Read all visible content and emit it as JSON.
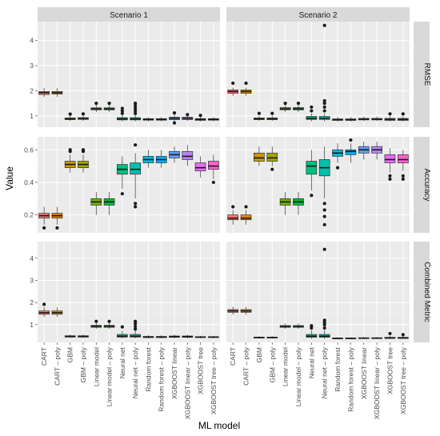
{
  "chart_data": {
    "type": "boxplot",
    "xlabel": "ML model",
    "ylabel": "Value",
    "columns": [
      "Scenario 1",
      "Scenario 2"
    ],
    "rows": [
      {
        "label": "RMSE",
        "ylim": [
          0.55,
          4.75
        ],
        "yticks": [
          1,
          2,
          3,
          4
        ]
      },
      {
        "label": "Accuracy",
        "ylim": [
          0.09,
          0.68
        ],
        "yticks": [
          0.2,
          0.4,
          0.6
        ]
      },
      {
        "label": "Combined Metric",
        "ylim": [
          0.2,
          4.75
        ],
        "yticks": [
          1,
          2,
          3,
          4
        ]
      }
    ],
    "categories": [
      "CART",
      "CART – poly",
      "GBM",
      "GBM – poly",
      "Linear model",
      "Linear model – poly",
      "Neural net",
      "Neural net – poly",
      "Random forest",
      "Random forest – poly",
      "XGBOOST linear",
      "XGBOOST linear – poly",
      "XGBOOST tree",
      "XGBOOST tree – poly"
    ],
    "colors": [
      "#F8766D",
      "#E58700",
      "#C99800",
      "#A3A500",
      "#6BB100",
      "#00BA38",
      "#00BF7D",
      "#00C0AF",
      "#00BCD8",
      "#00B0F6",
      "#619CFF",
      "#B983FF",
      "#E76BF3",
      "#FD61D1"
    ],
    "boxes": {
      "RMSE": {
        "Scenario 1": [
          [
            1.75,
            1.85,
            1.92,
            1.97,
            2.1,
            []
          ],
          [
            1.75,
            1.87,
            1.92,
            1.97,
            2.1,
            []
          ],
          [
            0.8,
            0.85,
            0.88,
            0.92,
            1.0,
            [
              1.07
            ]
          ],
          [
            0.8,
            0.86,
            0.89,
            0.93,
            1.0,
            [
              1.08
            ]
          ],
          [
            1.15,
            1.24,
            1.28,
            1.32,
            1.42,
            [
              1.5
            ]
          ],
          [
            1.15,
            1.24,
            1.28,
            1.32,
            1.42,
            [
              1.5
            ]
          ],
          [
            0.78,
            0.84,
            0.88,
            0.93,
            1.05,
            [
              1.1,
              1.2,
              1.3
            ]
          ],
          [
            0.78,
            0.84,
            0.88,
            0.93,
            1.05,
            [
              1.1,
              1.2,
              1.3,
              1.4,
              1.5
            ]
          ],
          [
            0.78,
            0.83,
            0.86,
            0.89,
            0.95,
            []
          ],
          [
            0.78,
            0.83,
            0.86,
            0.89,
            0.95,
            []
          ],
          [
            0.8,
            0.85,
            0.9,
            0.95,
            1.05,
            [
              0.72,
              1.12
            ]
          ],
          [
            0.8,
            0.85,
            0.9,
            0.95,
            1.0,
            [
              1.05
            ]
          ],
          [
            0.78,
            0.82,
            0.86,
            0.89,
            0.95,
            [
              1.02
            ]
          ],
          [
            0.78,
            0.83,
            0.86,
            0.89,
            0.95,
            []
          ]
        ],
        "Scenario 2": [
          [
            1.8,
            1.9,
            1.97,
            2.03,
            2.12,
            [
              2.3
            ]
          ],
          [
            1.8,
            1.9,
            1.97,
            2.03,
            2.12,
            [
              2.3
            ]
          ],
          [
            0.8,
            0.85,
            0.88,
            0.92,
            1.0,
            [
              1.1
            ]
          ],
          [
            0.8,
            0.85,
            0.88,
            0.92,
            1.0,
            [
              1.1
            ]
          ],
          [
            1.15,
            1.24,
            1.28,
            1.33,
            1.42,
            [
              1.5
            ]
          ],
          [
            1.15,
            1.24,
            1.28,
            1.33,
            1.42,
            [
              1.5
            ]
          ],
          [
            0.78,
            0.86,
            0.9,
            0.98,
            1.1,
            [
              1.2,
              1.35
            ]
          ],
          [
            0.78,
            0.86,
            0.9,
            0.98,
            1.1,
            [
              1.2,
              1.35,
              1.5,
              1.6,
              4.6
            ]
          ],
          [
            0.78,
            0.82,
            0.85,
            0.88,
            0.95,
            []
          ],
          [
            0.78,
            0.82,
            0.85,
            0.88,
            0.95,
            []
          ],
          [
            0.8,
            0.84,
            0.87,
            0.9,
            0.97,
            []
          ],
          [
            0.8,
            0.84,
            0.87,
            0.9,
            0.97,
            []
          ],
          [
            0.78,
            0.82,
            0.86,
            0.9,
            0.98,
            [
              1.08
            ]
          ],
          [
            0.78,
            0.82,
            0.86,
            0.9,
            0.98,
            [
              1.08
            ]
          ]
        ]
      },
      "Accuracy": {
        "Scenario 1": [
          [
            0.14,
            0.18,
            0.195,
            0.21,
            0.25,
            [
              0.12
            ]
          ],
          [
            0.14,
            0.18,
            0.195,
            0.21,
            0.25,
            [
              0.12
            ]
          ],
          [
            0.46,
            0.49,
            0.51,
            0.53,
            0.57,
            [
              0.59,
              0.6
            ]
          ],
          [
            0.46,
            0.49,
            0.51,
            0.53,
            0.57,
            [
              0.59,
              0.6
            ]
          ],
          [
            0.2,
            0.26,
            0.28,
            0.3,
            0.34,
            []
          ],
          [
            0.2,
            0.26,
            0.28,
            0.3,
            0.34,
            []
          ],
          [
            0.36,
            0.45,
            0.48,
            0.51,
            0.56,
            [
              0.33
            ]
          ],
          [
            0.3,
            0.45,
            0.48,
            0.52,
            0.58,
            [
              0.25,
              0.27,
              0.63
            ]
          ],
          [
            0.49,
            0.52,
            0.54,
            0.56,
            0.6,
            []
          ],
          [
            0.49,
            0.52,
            0.54,
            0.56,
            0.6,
            []
          ],
          [
            0.52,
            0.55,
            0.57,
            0.59,
            0.62,
            []
          ],
          [
            0.5,
            0.54,
            0.56,
            0.59,
            0.63,
            []
          ],
          [
            0.43,
            0.47,
            0.49,
            0.52,
            0.56,
            []
          ],
          [
            0.42,
            0.48,
            0.5,
            0.53,
            0.57,
            [
              0.4
            ]
          ]
        ],
        "Scenario 2": [
          [
            0.14,
            0.17,
            0.18,
            0.2,
            0.23,
            [
              0.25
            ]
          ],
          [
            0.14,
            0.17,
            0.18,
            0.2,
            0.23,
            [
              0.25
            ]
          ],
          [
            0.5,
            0.53,
            0.55,
            0.58,
            0.62,
            []
          ],
          [
            0.5,
            0.53,
            0.55,
            0.58,
            0.62,
            [
              0.48
            ]
          ],
          [
            0.2,
            0.26,
            0.28,
            0.3,
            0.34,
            []
          ],
          [
            0.2,
            0.26,
            0.28,
            0.3,
            0.34,
            []
          ],
          [
            0.35,
            0.45,
            0.5,
            0.53,
            0.6,
            [
              0.32
            ]
          ],
          [
            0.3,
            0.44,
            0.49,
            0.54,
            0.62,
            [
              0.14,
              0.19,
              0.23,
              0.27
            ]
          ],
          [
            0.52,
            0.56,
            0.58,
            0.6,
            0.64,
            [
              0.49
            ]
          ],
          [
            0.52,
            0.57,
            0.59,
            0.6,
            0.64,
            [
              0.66
            ]
          ],
          [
            0.54,
            0.58,
            0.6,
            0.62,
            0.65,
            []
          ],
          [
            0.54,
            0.58,
            0.6,
            0.62,
            0.65,
            []
          ],
          [
            0.46,
            0.52,
            0.54,
            0.57,
            0.61,
            [
              0.42,
              0.44
            ]
          ],
          [
            0.47,
            0.52,
            0.54,
            0.57,
            0.6,
            [
              0.42,
              0.44
            ]
          ]
        ]
      },
      "Combined Metric": {
        "Scenario 1": [
          [
            1.35,
            1.47,
            1.54,
            1.62,
            1.78,
            [
              1.92
            ]
          ],
          [
            1.35,
            1.47,
            1.54,
            1.62,
            1.78,
            []
          ],
          [
            0.4,
            0.44,
            0.47,
            0.5,
            0.55,
            []
          ],
          [
            0.4,
            0.44,
            0.47,
            0.5,
            0.55,
            []
          ],
          [
            0.82,
            0.88,
            0.93,
            0.97,
            1.07,
            [
              1.15
            ]
          ],
          [
            0.82,
            0.88,
            0.93,
            0.97,
            1.07,
            [
              1.15
            ]
          ],
          [
            0.38,
            0.44,
            0.48,
            0.56,
            0.72,
            [
              0.9
            ]
          ],
          [
            0.38,
            0.44,
            0.48,
            0.56,
            0.72,
            [
              0.8,
              0.92,
              1.05,
              1.15
            ]
          ],
          [
            0.38,
            0.42,
            0.44,
            0.47,
            0.52,
            []
          ],
          [
            0.38,
            0.42,
            0.44,
            0.47,
            0.52,
            []
          ],
          [
            0.38,
            0.43,
            0.46,
            0.49,
            0.55,
            []
          ],
          [
            0.38,
            0.43,
            0.46,
            0.49,
            0.55,
            []
          ],
          [
            0.38,
            0.42,
            0.44,
            0.46,
            0.5,
            []
          ],
          [
            0.38,
            0.42,
            0.44,
            0.46,
            0.5,
            []
          ]
        ],
        "Scenario 2": [
          [
            1.45,
            1.56,
            1.62,
            1.68,
            1.8,
            []
          ],
          [
            1.45,
            1.56,
            1.62,
            1.68,
            1.8,
            []
          ],
          [
            0.37,
            0.4,
            0.42,
            0.44,
            0.48,
            []
          ],
          [
            0.37,
            0.4,
            0.42,
            0.44,
            0.48,
            []
          ],
          [
            0.82,
            0.88,
            0.92,
            0.96,
            1.05,
            []
          ],
          [
            0.82,
            0.88,
            0.92,
            0.96,
            1.05,
            []
          ],
          [
            0.35,
            0.43,
            0.48,
            0.56,
            0.75,
            [
              0.85,
              0.95
            ]
          ],
          [
            0.35,
            0.43,
            0.48,
            0.56,
            0.75,
            [
              0.85,
              1.0,
              1.1,
              1.2,
              4.4
            ]
          ],
          [
            0.34,
            0.37,
            0.38,
            0.4,
            0.43,
            []
          ],
          [
            0.34,
            0.37,
            0.38,
            0.4,
            0.43,
            []
          ],
          [
            0.35,
            0.38,
            0.39,
            0.41,
            0.44,
            []
          ],
          [
            0.35,
            0.38,
            0.39,
            0.41,
            0.44,
            []
          ],
          [
            0.35,
            0.38,
            0.4,
            0.43,
            0.5,
            [
              0.6
            ]
          ],
          [
            0.35,
            0.38,
            0.4,
            0.43,
            0.5,
            [
              0.55
            ]
          ]
        ]
      }
    }
  }
}
